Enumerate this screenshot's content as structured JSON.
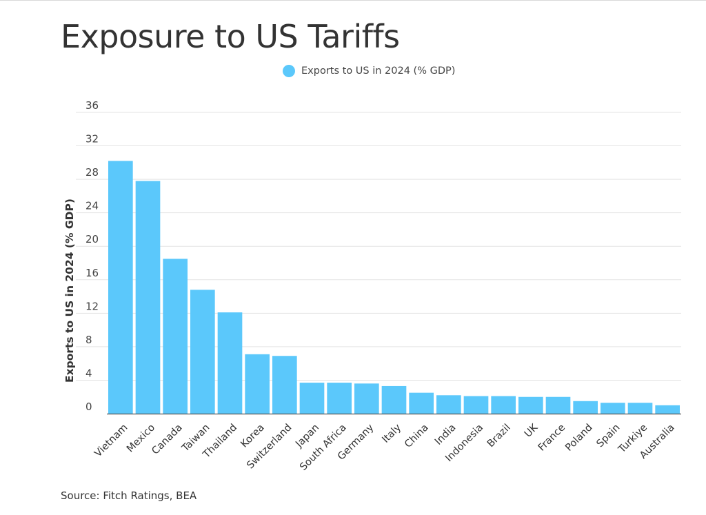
{
  "header": {
    "title": "Exposure to US Tariffs"
  },
  "legend": {
    "label": "Exports to US in 2024 (% GDP)",
    "color": "#5bc8fb"
  },
  "footer": {
    "source": "Source: Fitch Ratings, BEA"
  },
  "chart_data": {
    "type": "bar",
    "title": "Exposure to US Tariffs",
    "xlabel": "",
    "ylabel": "Exports to US in 2024 (% GDP)",
    "ylim": [
      0,
      36
    ],
    "yticks": [
      0,
      4,
      8,
      12,
      16,
      20,
      24,
      28,
      32,
      36
    ],
    "grid": true,
    "legend_position": "top-center",
    "bar_color": "#5bc8fb",
    "categories": [
      "Vietnam",
      "Mexico",
      "Canada",
      "Taiwan",
      "Thailand",
      "Korea",
      "Switzerland",
      "Japan",
      "South Africa",
      "Germany",
      "Italy",
      "China",
      "India",
      "Indonesia",
      "Brazil",
      "UK",
      "France",
      "Poland",
      "Spain",
      "Turkiye",
      "Australia"
    ],
    "series": [
      {
        "name": "Exports to US in 2024 (% GDP)",
        "values": [
          30.2,
          27.8,
          18.5,
          14.8,
          12.1,
          7.1,
          6.9,
          3.7,
          3.7,
          3.6,
          3.3,
          2.5,
          2.2,
          2.1,
          2.1,
          2.0,
          2.0,
          1.5,
          1.3,
          1.3,
          1.0
        ]
      }
    ]
  }
}
